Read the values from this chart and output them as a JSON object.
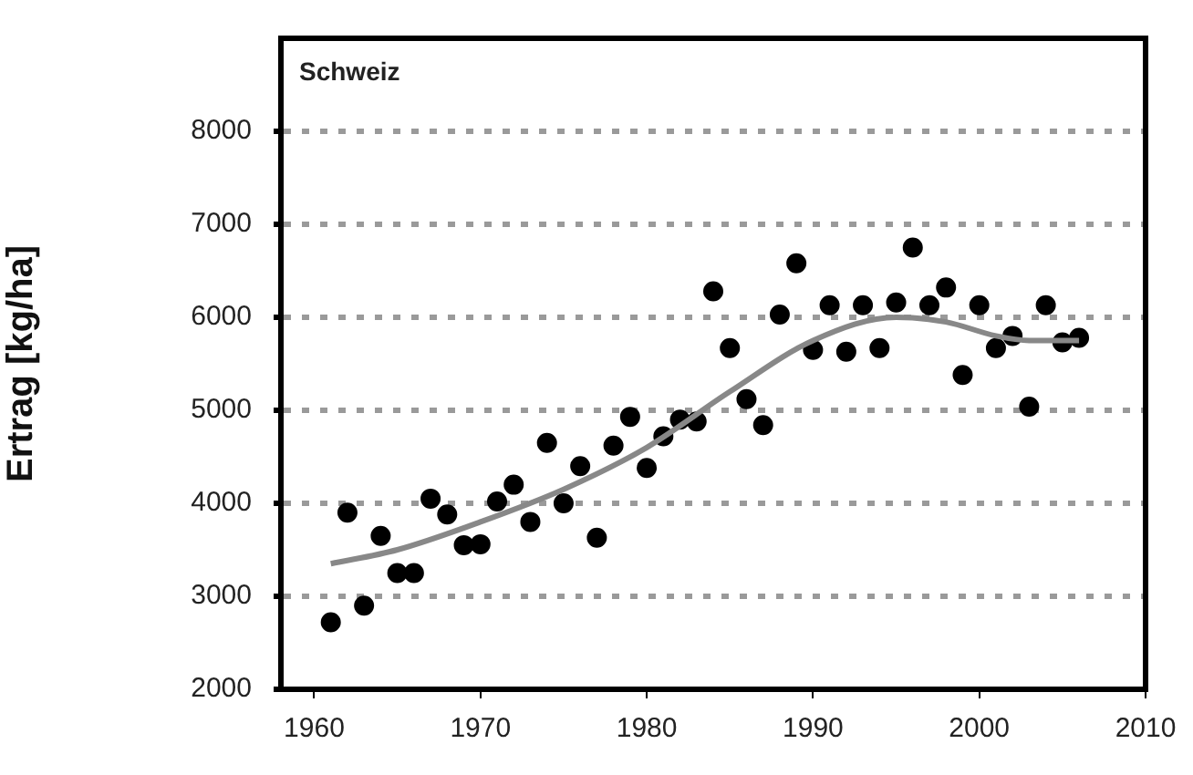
{
  "chart_data": {
    "type": "scatter",
    "title": "Schweiz",
    "ylabel": "Ertrag [kg/ha]",
    "xlim": [
      1958,
      2010
    ],
    "xticks": [
      1960,
      1970,
      1980,
      1990,
      2000,
      2010
    ],
    "ylim": [
      2000,
      9000
    ],
    "yticks": [
      2000,
      3000,
      4000,
      5000,
      6000,
      7000,
      8000
    ],
    "grid": "y",
    "legend": false,
    "marker": "circle",
    "series": [
      {
        "type": "scatter",
        "color": "#000000",
        "x": [
          1961,
          1962,
          1963,
          1964,
          1965,
          1966,
          1967,
          1968,
          1969,
          1970,
          1971,
          1972,
          1973,
          1974,
          1975,
          1976,
          1977,
          1978,
          1979,
          1980,
          1981,
          1982,
          1983,
          1984,
          1985,
          1986,
          1987,
          1988,
          1989,
          1990,
          1991,
          1992,
          1993,
          1994,
          1995,
          1996,
          1997,
          1998,
          1999,
          2000,
          2001,
          2002,
          2003,
          2004,
          2005,
          2006
        ],
        "values": [
          2720,
          3900,
          2900,
          3650,
          3250,
          3250,
          4050,
          3880,
          3550,
          3560,
          4020,
          4200,
          3800,
          4650,
          4000,
          4400,
          3630,
          4620,
          4930,
          4380,
          4720,
          4900,
          4880,
          6280,
          5670,
          5120,
          4840,
          6030,
          6580,
          5650,
          6130,
          5630,
          6130,
          5670,
          6160,
          6750,
          6130,
          6320,
          5380,
          6130,
          5670,
          5800,
          5040,
          6130,
          5730,
          5780
        ]
      },
      {
        "type": "line",
        "color": "#888888",
        "marker": "none",
        "line_style": "solid",
        "x": [
          1961,
          1965,
          1970,
          1975,
          1980,
          1985,
          1990,
          1995,
          1998,
          2001,
          2003,
          2006
        ],
        "values": [
          3350,
          3500,
          3800,
          4150,
          4600,
          5200,
          5750,
          6000,
          5950,
          5800,
          5750,
          5750
        ]
      }
    ]
  }
}
